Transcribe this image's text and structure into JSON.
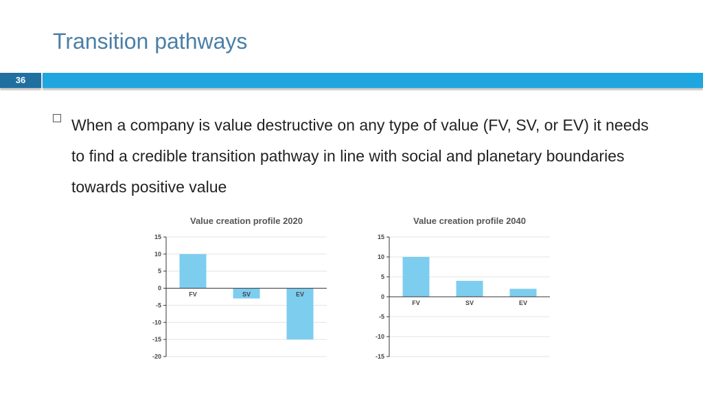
{
  "slide": {
    "title": "Transition pathways",
    "number": "36",
    "bullet": "When a company is value destructive on any type of value (FV, SV, or EV) it needs to find a credible transition pathway in line with social and planetary boundaries towards positive value"
  },
  "colors": {
    "accent": "#1fa6df",
    "number_bg": "#1f6fa0",
    "title": "#4a7fa6",
    "bar": "#7dcdef"
  },
  "chart_data": [
    {
      "type": "bar",
      "title": "Value creation profile 2020",
      "categories": [
        "FV",
        "SV",
        "EV"
      ],
      "values": [
        10,
        -3,
        -15
      ],
      "ylim": [
        -20,
        15
      ],
      "yticks": [
        15,
        10,
        5,
        0,
        -5,
        -10,
        -15,
        -20
      ],
      "grid": true
    },
    {
      "type": "bar",
      "title": "Value creation profile 2040",
      "categories": [
        "FV",
        "SV",
        "EV"
      ],
      "values": [
        10,
        4,
        2
      ],
      "ylim": [
        -15,
        15
      ],
      "yticks": [
        15,
        10,
        5,
        0,
        -5,
        -10,
        -15
      ],
      "grid": true
    }
  ]
}
